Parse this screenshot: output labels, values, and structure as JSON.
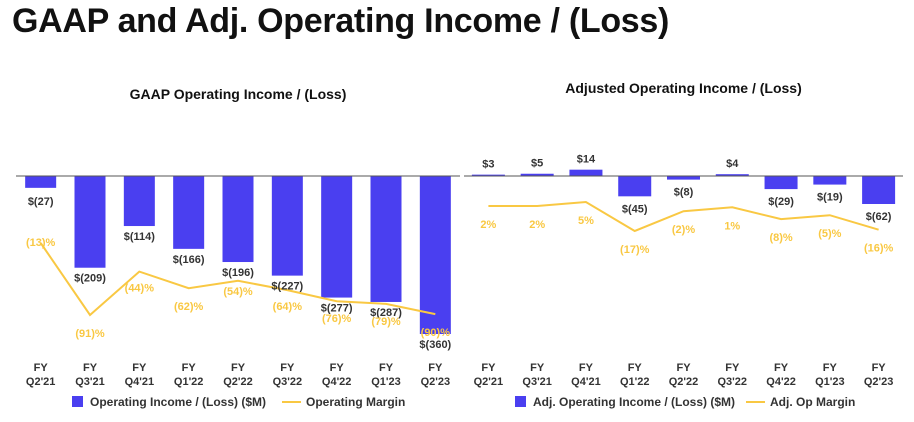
{
  "page": {
    "title": "GAAP and Adj. Operating Income / (Loss)"
  },
  "colors": {
    "bar": "#4a3ff0",
    "line": "#f9c843",
    "zero_line": "#555555"
  },
  "chart_data": [
    {
      "id": "gaap",
      "type": "bar",
      "title": "GAAP Operating Income / (Loss)",
      "categories": [
        "FY\nQ2'21",
        "FY\nQ3'21",
        "FY\nQ4'21",
        "FY\nQ1'22",
        "FY\nQ2'22",
        "FY\nQ3'22",
        "FY\nQ4'22",
        "FY\nQ1'23",
        "FY\nQ2'23"
      ],
      "series": [
        {
          "name": "Operating Income / (Loss) ($M)",
          "kind": "bar",
          "values": [
            -27,
            -209,
            -114,
            -166,
            -196,
            -227,
            -277,
            -287,
            -360
          ],
          "labels": [
            "$(27)",
            "$(209)",
            "$(114)",
            "$(166)",
            "$(196)",
            "$(227)",
            "$(277)",
            "$(287)",
            "$(360)"
          ]
        },
        {
          "name": "Operating Margin",
          "kind": "line",
          "values": [
            -13,
            -91,
            -44,
            -62,
            -54,
            -64,
            -76,
            -79,
            -90
          ],
          "labels": [
            "(13)%",
            "(91)%",
            "(44)%",
            "(62)%",
            "(54)%",
            "(64)%",
            "(76)%",
            "(79)%",
            "(90)%"
          ]
        }
      ],
      "bar_ylim": [
        -360,
        0
      ],
      "margin_ylim": [
        -91,
        -13
      ]
    },
    {
      "id": "adjusted",
      "type": "bar",
      "title": "Adjusted Operating Income / (Loss)",
      "categories": [
        "FY\nQ2'21",
        "FY\nQ3'21",
        "FY\nQ4'21",
        "FY\nQ1'22",
        "FY\nQ2'22",
        "FY\nQ3'22",
        "FY\nQ4'22",
        "FY\nQ1'23",
        "FY\nQ2'23"
      ],
      "series": [
        {
          "name": "Adj. Operating Income / (Loss) ($M)",
          "kind": "bar",
          "values": [
            3,
            5,
            14,
            -45,
            -8,
            4,
            -29,
            -19,
            -62
          ],
          "labels": [
            "$3",
            "$5",
            "$14",
            "$(45)",
            "$(8)",
            "$4",
            "$(29)",
            "$(19)",
            "$(62)"
          ]
        },
        {
          "name": "Adj. Op Margin",
          "kind": "line",
          "values": [
            2,
            2,
            5,
            -17,
            -2,
            1,
            -8,
            -5,
            -16
          ],
          "labels": [
            "2%",
            "2%",
            "5%",
            "(17)%",
            "(2)%",
            "1%",
            "(8)%",
            "(5)%",
            "(16)%"
          ]
        }
      ],
      "bar_ylim": [
        -62,
        14
      ],
      "margin_ylim": [
        -17,
        5
      ]
    }
  ]
}
